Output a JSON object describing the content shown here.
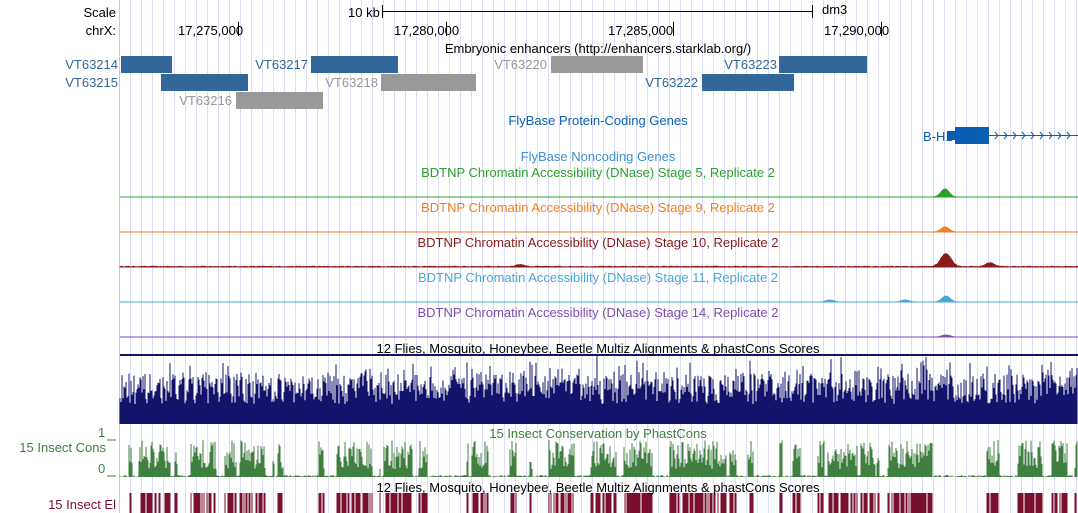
{
  "ruler": {
    "scale_label": "Scale",
    "scale_value": "10 kb",
    "assembly": "dm3",
    "chrom_label": "chrX:",
    "ticks": [
      "17,275,000",
      "17,280,000",
      "17,285,000",
      "17,290,000"
    ]
  },
  "colors": {
    "enhancer_active": "#336699",
    "enhancer_inactive": "#999999",
    "gene": "#0a5fb4",
    "noncoding": "#3a8fd6",
    "stage5": "#2ca02c",
    "stage9": "#f07f20",
    "stage10": "#8b1a1a",
    "stage11": "#4aa8d8",
    "stage14": "#7b4fb0",
    "multiz": "#13136b",
    "cons": "#3f7f3f",
    "elements": "#7a1030"
  },
  "enhancers": {
    "title": "Embryonic enhancers (http://enhancers.starklab.org/)",
    "items": [
      {
        "label": "VT63214",
        "active": true
      },
      {
        "label": "VT63215",
        "active": true
      },
      {
        "label": "VT63216",
        "active": false
      },
      {
        "label": "VT63217",
        "active": true
      },
      {
        "label": "VT63218",
        "active": false
      },
      {
        "label": "VT63220",
        "active": false
      },
      {
        "label": "VT63223",
        "active": true
      },
      {
        "label": "VT63222",
        "active": true
      }
    ]
  },
  "genes": {
    "title": "FlyBase Protein-Coding Genes",
    "gene_label": "B-H1",
    "noncoding_title": "FlyBase Noncoding Genes"
  },
  "dnase": [
    {
      "title": "BDTNP Chromatin Accessibility (DNase) Stage 5, Replicate 2"
    },
    {
      "title": "BDTNP Chromatin Accessibility (DNase) Stage 9, Replicate 2"
    },
    {
      "title": "BDTNP Chromatin Accessibility (DNase) Stage 10, Replicate 2"
    },
    {
      "title": "BDTNP Chromatin Accessibility (DNase) Stage 11, Replicate 2"
    },
    {
      "title": "BDTNP Chromatin Accessibility (DNase) Stage 14, Replicate 2"
    }
  ],
  "multiz": {
    "title": "12 Flies, Mosquito, Honeybee, Beetle Multiz Alignments & phastCons Scores"
  },
  "cons": {
    "title": "15 Insect Conservation by PhastCons",
    "label": "15 Insect Cons",
    "ymax": "1",
    "ymin": "0"
  },
  "elements": {
    "title": "12 Flies, Mosquito, Honeybee, Beetle Multiz Alignments & phastCons Scores",
    "label": "15 Insect El"
  }
}
